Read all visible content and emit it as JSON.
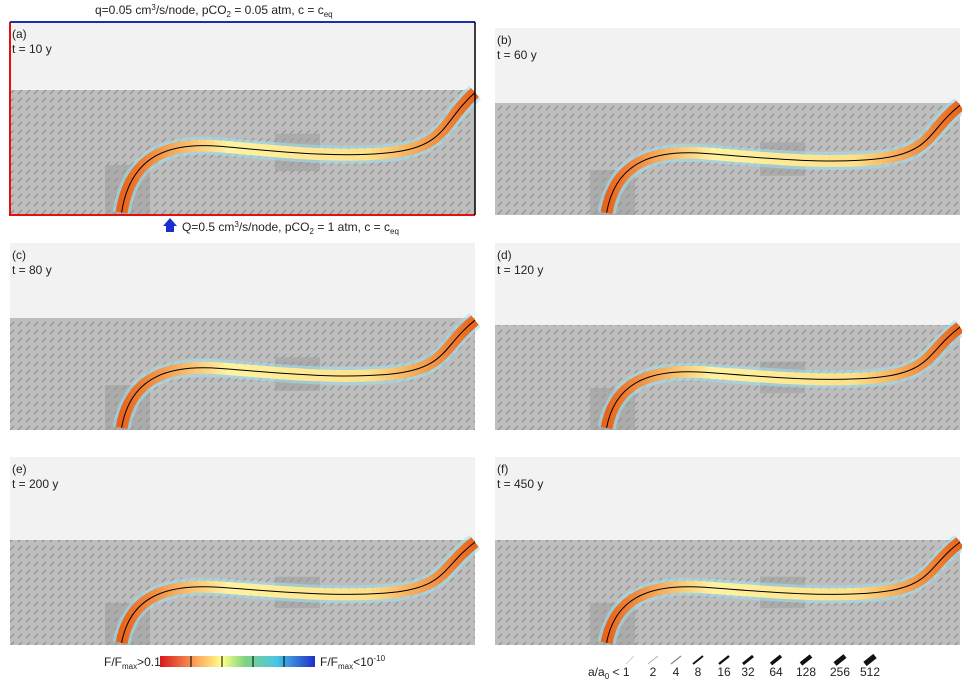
{
  "top_label": {
    "parts": [
      "q=0.05 cm",
      "3",
      "/s/node, pCO",
      "2",
      " = 0.05 atm, c = c",
      "eq"
    ]
  },
  "bottom_label": {
    "parts": [
      "Q=0.5 cm",
      "3",
      "/s/node, pCO",
      "2",
      " = 1 atm, c = c",
      "eq"
    ]
  },
  "panels": [
    {
      "label": "(a)",
      "time": "t = 10 y"
    },
    {
      "label": "(b)",
      "time": "t = 60 y"
    },
    {
      "label": "(c)",
      "time": "t = 80 y"
    },
    {
      "label": "(d)",
      "time": "t = 120 y"
    },
    {
      "label": "(e)",
      "time": "t = 200 y"
    },
    {
      "label": "(f)",
      "time": "t = 450 y"
    }
  ],
  "colorbar": {
    "left": {
      "parts": [
        "F/F",
        "max",
        ">0.1"
      ]
    },
    "right": {
      "parts": [
        "F/F",
        "max",
        "<10",
        "-10"
      ]
    }
  },
  "aperture_legend": {
    "first": {
      "parts": [
        "a/a",
        "0",
        " < 1"
      ]
    },
    "labels": [
      "2",
      "4",
      "8",
      "16",
      "32",
      "64",
      "128",
      "256",
      "512"
    ]
  }
}
